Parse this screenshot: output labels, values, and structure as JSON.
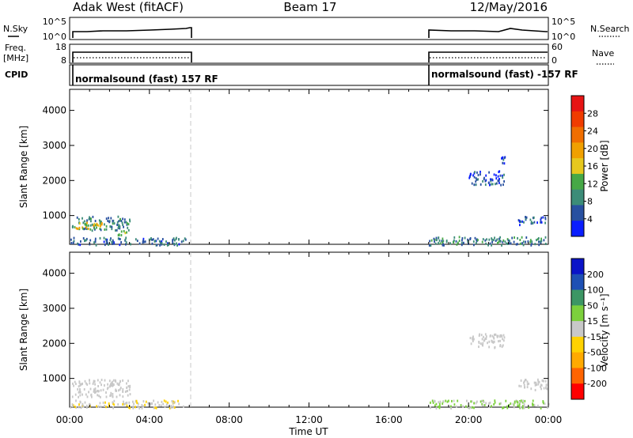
{
  "header": {
    "title": "Adak West (fitACF)",
    "beam": "Beam 17",
    "date": "12/May/2016"
  },
  "top_panels": {
    "nsky_label": "N.Sky",
    "nsearch_label": "N.Search",
    "noise_ticks": [
      "10^5",
      "10^0"
    ],
    "freq_label_1": "Freq.",
    "freq_label_2": "[MHz]",
    "freq_ticks": [
      "18",
      "8"
    ],
    "nave_label": "Nave",
    "nave_ticks": [
      "60",
      "0"
    ],
    "cpid_label": "CPID",
    "cpid_segments": [
      {
        "text": "normalsound (fast) 157 RF",
        "start_hour": 0,
        "end_hour": 6
      },
      {
        "text": "normalsound (fast) -157 RF",
        "start_hour": 18,
        "end_hour": 24
      }
    ]
  },
  "colors": {
    "power": [
      "#0a1eff",
      "#2850a0",
      "#3c8c78",
      "#46a846",
      "#e6c81e",
      "#f0a000",
      "#f06e00",
      "#f03c00",
      "#e61414"
    ],
    "velocity": [
      "#ff0000",
      "#ff6400",
      "#ffaa00",
      "#ffd200",
      "#c8c8c8",
      "#7cd03c",
      "#3c9664",
      "#1e50b4",
      "#0a14c8"
    ]
  },
  "chart_data": [
    {
      "type": "heatmap",
      "title": "",
      "xlabel": "Time UT",
      "ylabel": "Slant Range [km]",
      "xlim": [
        0,
        24
      ],
      "ylim": [
        180,
        4600
      ],
      "xticks": [
        "00:00",
        "04:00",
        "08:00",
        "12:00",
        "16:00",
        "20:00",
        "00:00"
      ],
      "yticks": [
        1000,
        2000,
        3000,
        4000
      ],
      "colorbar": {
        "label": "Power [dB]",
        "ticks": [
          "4",
          "8",
          "12",
          "16",
          "20",
          "24",
          "28"
        ],
        "range": [
          0,
          30
        ]
      },
      "scatter_regions": [
        {
          "t": [
            0.1,
            3.0
          ],
          "r": [
            600,
            1000
          ],
          "value": 8
        },
        {
          "t": [
            0.3,
            1.6
          ],
          "r": [
            650,
            850
          ],
          "value": 16
        },
        {
          "t": [
            2.4,
            3.0
          ],
          "r": [
            450,
            600
          ],
          "value": 14
        },
        {
          "t": [
            0.0,
            5.8
          ],
          "r": [
            180,
            400
          ],
          "value": 6
        },
        {
          "t": [
            18.0,
            24.0
          ],
          "r": [
            180,
            420
          ],
          "value": 8
        },
        {
          "t": [
            22.4,
            23.9
          ],
          "r": [
            750,
            1000
          ],
          "value": 6
        },
        {
          "t": [
            20.0,
            21.8
          ],
          "r": [
            1900,
            2300
          ],
          "value": 4
        },
        {
          "t": [
            21.6,
            22.0
          ],
          "r": [
            2500,
            2700
          ],
          "value": 4
        }
      ]
    },
    {
      "type": "heatmap",
      "title": "",
      "xlabel": "Time UT",
      "ylabel": "Slant Range [km]",
      "xlim": [
        0,
        24
      ],
      "ylim": [
        180,
        4600
      ],
      "xticks": [
        "00:00",
        "04:00",
        "08:00",
        "12:00",
        "16:00",
        "20:00",
        "00:00"
      ],
      "yticks": [
        1000,
        2000,
        3000,
        4000
      ],
      "colorbar": {
        "label": "Velocity [m s⁻¹]",
        "ticks": [
          "-200",
          "-100",
          "-50",
          "-15",
          "15",
          "50",
          "100",
          "200"
        ],
        "range": [
          -250,
          250
        ]
      },
      "scatter_regions": [
        {
          "t": [
            0.1,
            3.0
          ],
          "r": [
            500,
            1000
          ],
          "value": 0
        },
        {
          "t": [
            0.0,
            5.8
          ],
          "r": [
            180,
            400
          ],
          "value": -20
        },
        {
          "t": [
            18.0,
            24.0
          ],
          "r": [
            180,
            400
          ],
          "value": 30
        },
        {
          "t": [
            22.4,
            23.9
          ],
          "r": [
            700,
            1000
          ],
          "value": 0
        },
        {
          "t": [
            20.0,
            21.8
          ],
          "r": [
            1900,
            2300
          ],
          "value": 0
        }
      ]
    }
  ]
}
